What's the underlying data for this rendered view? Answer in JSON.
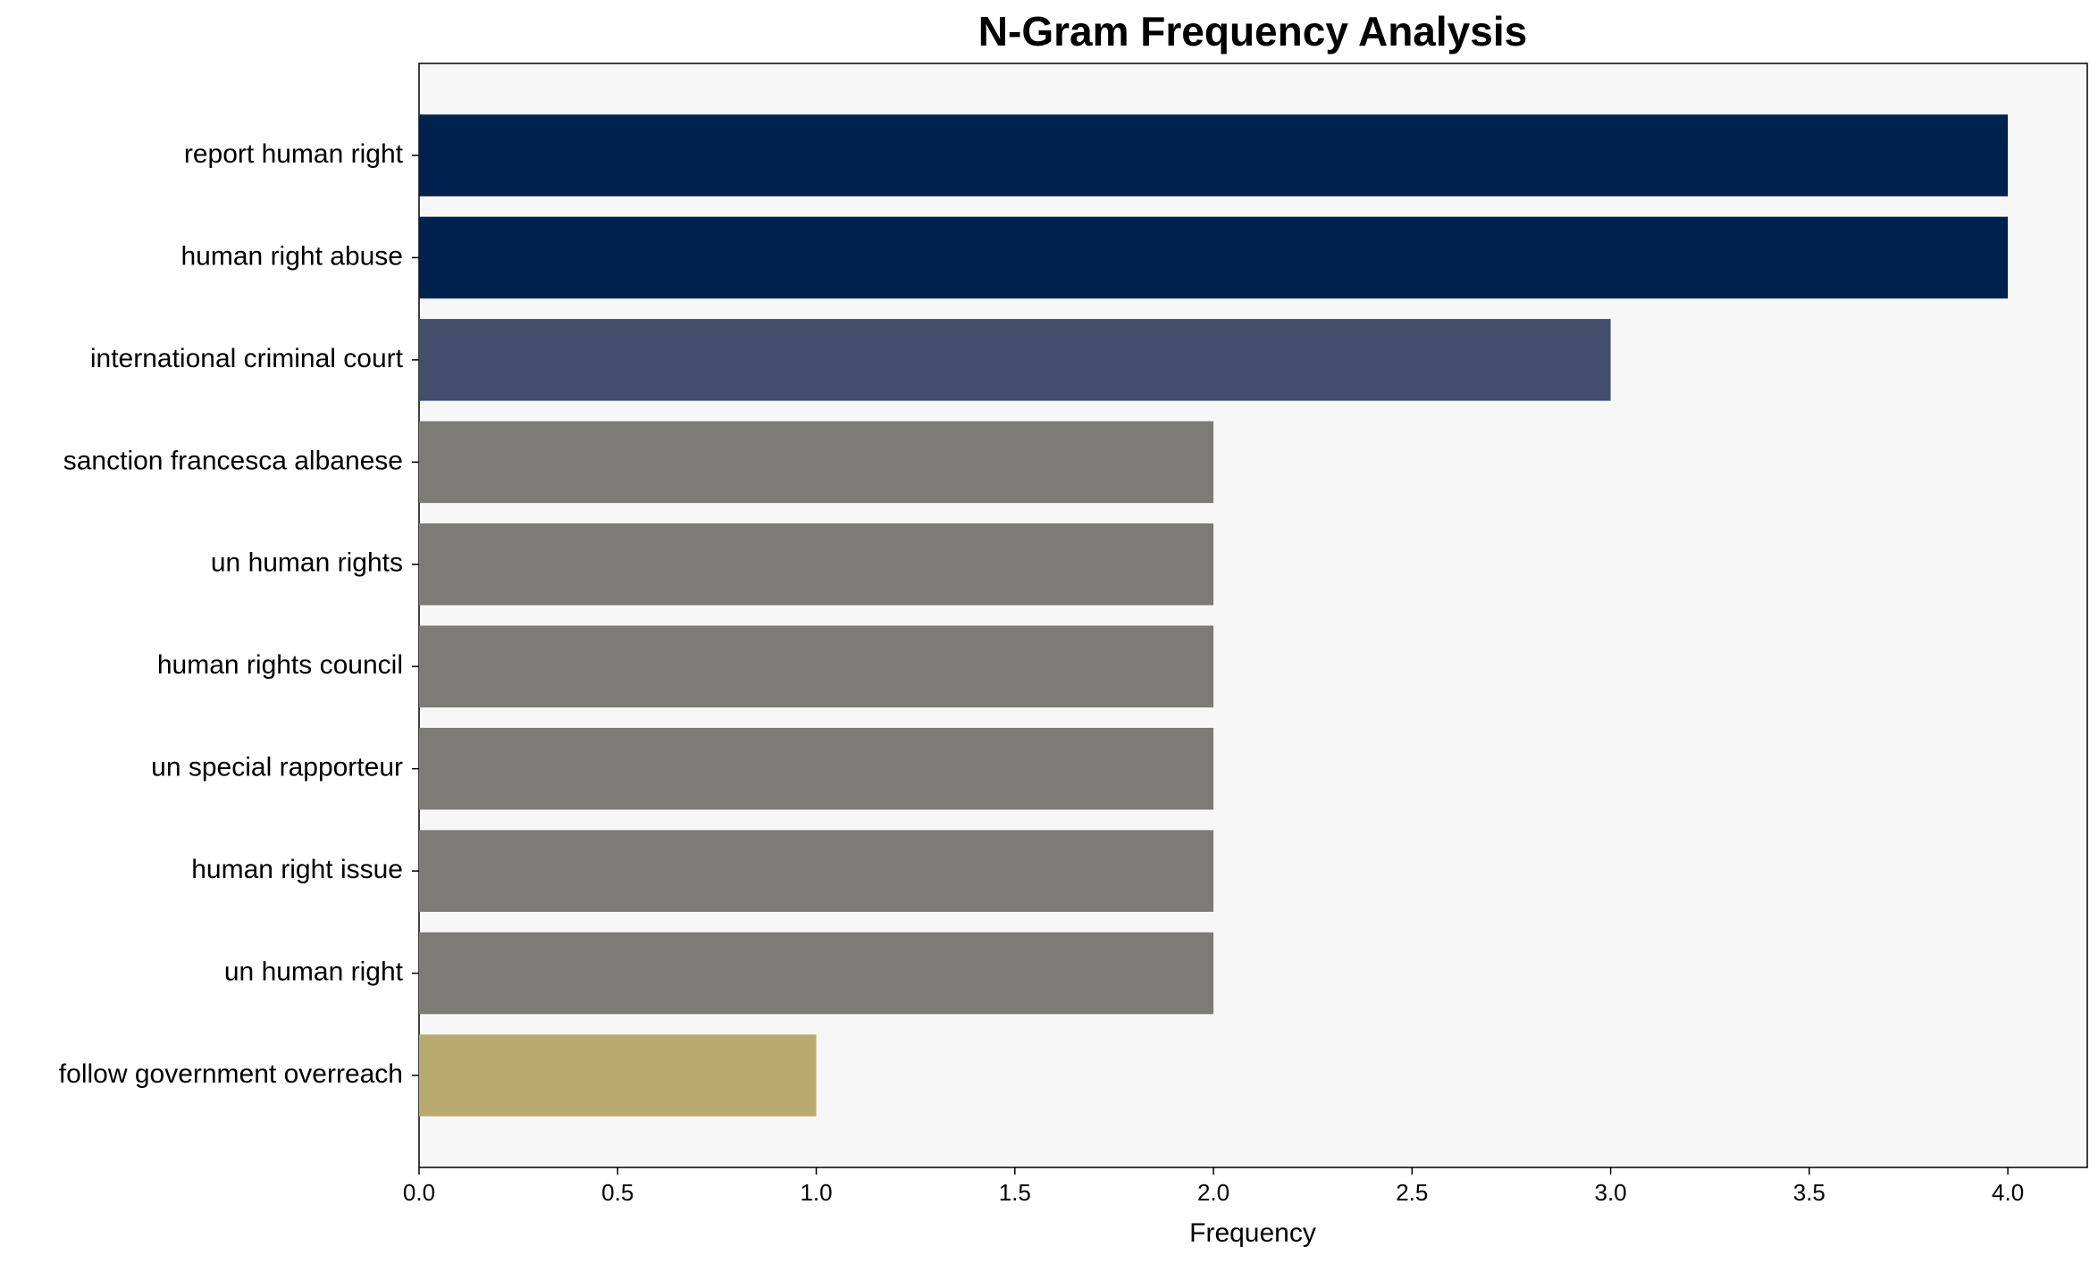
{
  "chart_data": {
    "type": "barh",
    "title": "N-Gram Frequency Analysis",
    "xlabel": "Frequency",
    "categories": [
      "report human right",
      "human right abuse",
      "international criminal court",
      "sanction francesca albanese",
      "un human rights",
      "human rights council",
      "un special rapporteur",
      "human right issue",
      "un human right",
      "follow government overreach"
    ],
    "values": [
      4,
      4,
      3,
      2,
      2,
      2,
      2,
      2,
      2,
      1
    ],
    "colors": [
      "#00224e",
      "#00224e",
      "#434e6c",
      "#7c7b78",
      "#7c7b78",
      "#7c7b78",
      "#7c7b78",
      "#7c7b78",
      "#7c7b78",
      "#b8aa6e"
    ],
    "xlim": [
      0,
      4.2
    ],
    "xticks": [
      {
        "value": 0,
        "label": "0.0"
      },
      {
        "value": 0.5,
        "label": "0.5"
      },
      {
        "value": 1,
        "label": "1.0"
      },
      {
        "value": 1.5,
        "label": "1.5"
      },
      {
        "value": 2,
        "label": "2.0"
      },
      {
        "value": 2.5,
        "label": "2.5"
      },
      {
        "value": 3,
        "label": "3.0"
      },
      {
        "value": 3.5,
        "label": "3.5"
      },
      {
        "value": 4,
        "label": "4.0"
      }
    ],
    "grid": false
  }
}
